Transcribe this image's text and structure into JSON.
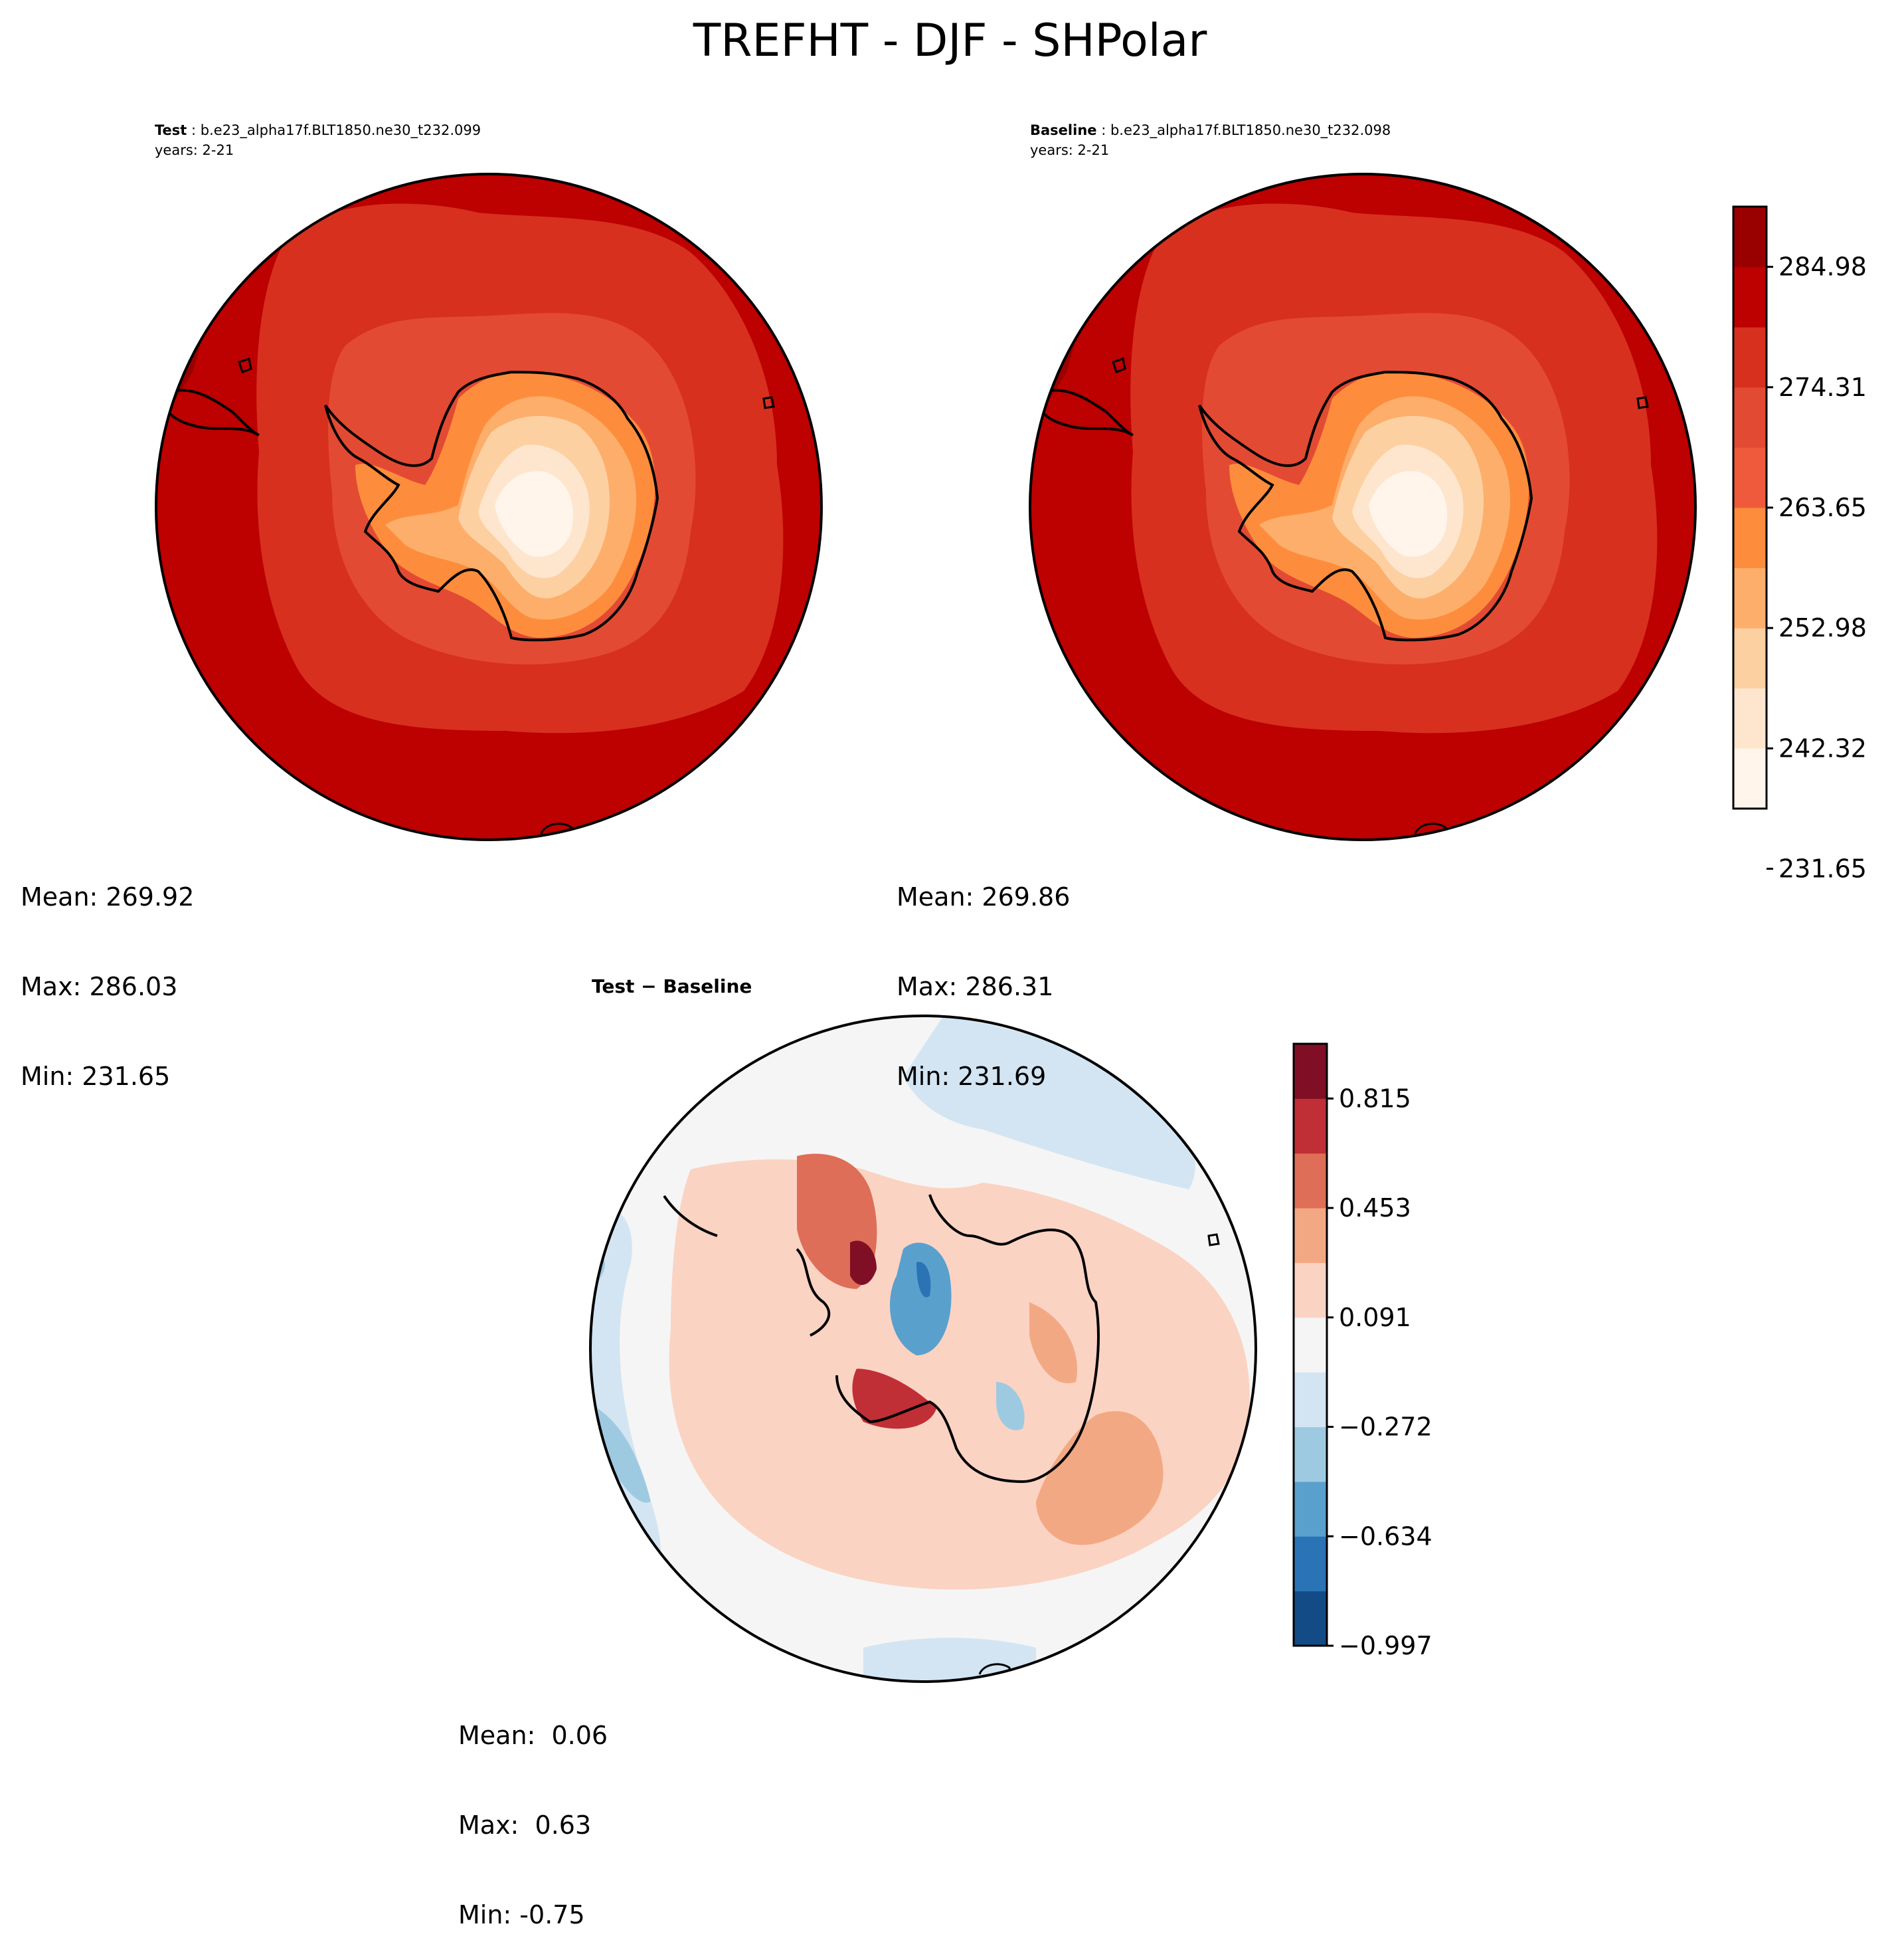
{
  "figure": {
    "title": "TREFHT - DJF - SHPolar"
  },
  "panels": {
    "test": {
      "label": "Test",
      "case": "b.e23_alpha17f.BLT1850.ne30_t232.099",
      "years": "years: 2-21",
      "mean": "Mean: 269.92",
      "max": "Max: 286.03",
      "min": "Min: 231.65"
    },
    "baseline": {
      "label": "Baseline",
      "case": "b.e23_alpha17f.BLT1850.ne30_t232.098",
      "years": "years: 2-21",
      "mean": "Mean: 269.86",
      "max": "Max: 286.31",
      "min": "Min: 231.69"
    },
    "diff": {
      "title": "Test − Baseline",
      "mean": "Mean:  0.06",
      "max": "Max:  0.63",
      "min": "Min: -0.75"
    }
  },
  "colorbars": {
    "main": {
      "ticks": [
        "284.98",
        "274.31",
        "263.65",
        "252.98",
        "242.32",
        "231.65"
      ],
      "colors": [
        "#fff5eb",
        "#fee6ce",
        "#fdd0a2",
        "#fdae6b",
        "#fd8d3c",
        "#ef5a3c",
        "#e34a33",
        "#d7301f",
        "#bd0000",
        "#990000"
      ]
    },
    "diff": {
      "ticks": [
        "0.815",
        "0.453",
        "0.091",
        "−0.272",
        "−0.634",
        "−0.997"
      ],
      "colors": [
        "#134b87",
        "#2a73b5",
        "#5aa0cc",
        "#9ecae1",
        "#d3e5f2",
        "#f5f5f5",
        "#fbd3c3",
        "#f3a884",
        "#de6e57",
        "#c02f35",
        "#800f26"
      ]
    }
  }
}
